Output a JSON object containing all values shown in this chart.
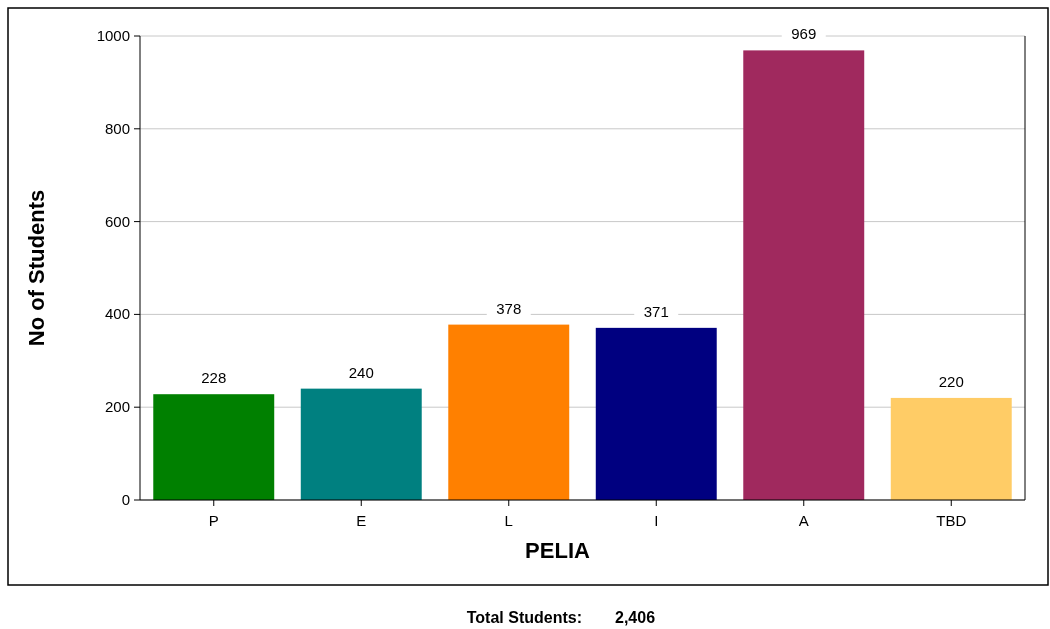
{
  "chart_data": {
    "type": "bar",
    "xlabel": "PELIA",
    "ylabel": "No of Students",
    "categories": [
      "P",
      "E",
      "L",
      "I",
      "A",
      "TBD"
    ],
    "values": [
      228,
      240,
      378,
      371,
      969,
      220
    ],
    "colors": [
      "#008000",
      "#008080",
      "#ff8000",
      "#000080",
      "#a0295e",
      "#ffcc66"
    ],
    "ylim": [
      0,
      1000
    ],
    "yticks": [
      0,
      200,
      400,
      600,
      800,
      1000
    ],
    "grid": "y",
    "data_labels": true,
    "annotations": [
      "Total Students:",
      "2,406"
    ]
  }
}
